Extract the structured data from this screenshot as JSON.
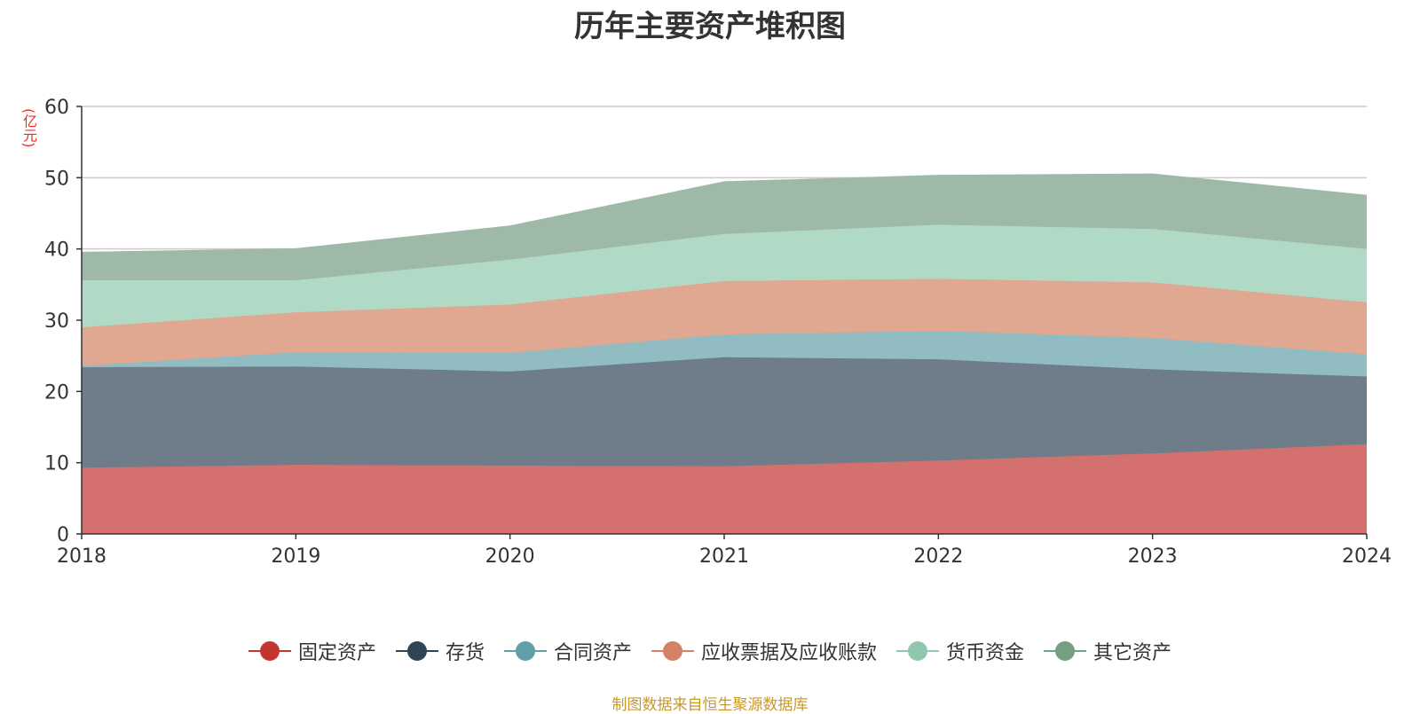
{
  "title": "历年主要资产堆积图",
  "source_note": "制图数据来自恒生聚源数据库",
  "chart_data": {
    "type": "area",
    "stacked": true,
    "title": "历年主要资产堆积图",
    "ylabel": "(亿元)",
    "x": [
      "2018",
      "2019",
      "2020",
      "2021",
      "2022",
      "2023",
      "2024"
    ],
    "ylim": [
      0,
      60
    ],
    "yticks": [
      0,
      10,
      20,
      30,
      40,
      50,
      60
    ],
    "grid": true,
    "legend_position": "bottom",
    "series": [
      {
        "name": "固定资产",
        "color": "#c23531",
        "fill": "#d4706d",
        "values": [
          9.3,
          9.7,
          9.6,
          9.5,
          10.3,
          11.3,
          12.6
        ]
      },
      {
        "name": "存货",
        "color": "#2f4554",
        "fill": "#6e7d89",
        "values": [
          14.1,
          13.8,
          13.2,
          15.3,
          14.2,
          11.8,
          9.5
        ]
      },
      {
        "name": "合同资产",
        "color": "#61a0a8",
        "fill": "#90bcc2",
        "values": [
          0.2,
          2.0,
          2.6,
          3.2,
          4.0,
          4.4,
          3.1
        ]
      },
      {
        "name": "应收票据及应收账款",
        "color": "#d48265",
        "fill": "#e0a791",
        "values": [
          5.4,
          5.6,
          6.8,
          7.5,
          7.3,
          7.8,
          7.3
        ]
      },
      {
        "name": "货币资金",
        "color": "#91c7ae",
        "fill": "#b1dac6",
        "values": [
          6.6,
          4.5,
          6.3,
          6.6,
          7.6,
          7.5,
          7.5
        ]
      },
      {
        "name": "其它资产",
        "color": "#749f83",
        "fill": "#9eb9a7",
        "values": [
          3.9,
          4.4,
          4.7,
          7.3,
          6.9,
          7.7,
          7.5
        ]
      }
    ]
  }
}
